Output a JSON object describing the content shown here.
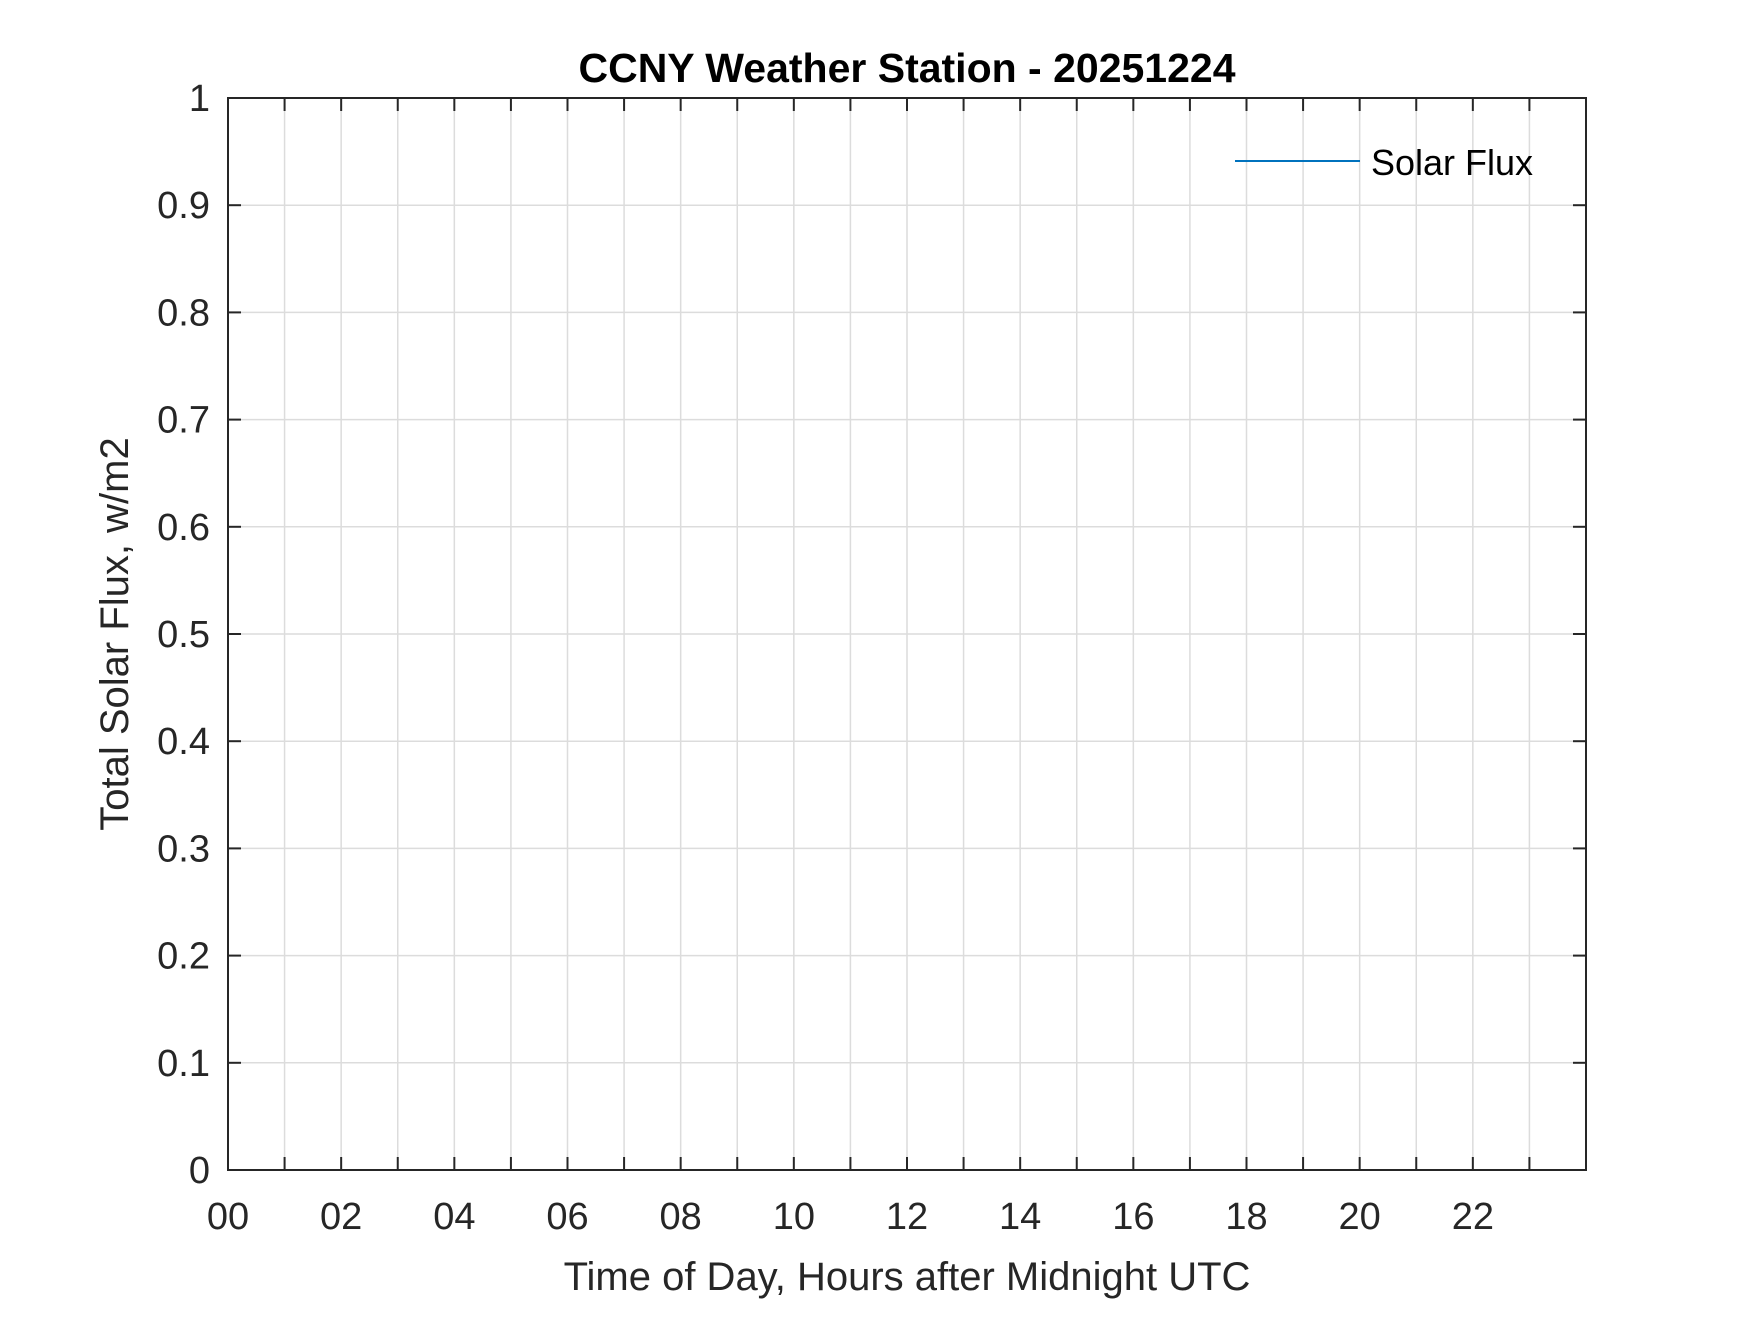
{
  "chart_data": {
    "type": "line",
    "title": "CCNY Weather Station - 20251224",
    "xlabel": "Time of Day, Hours after Midnight UTC",
    "ylabel": "Total Solar Flux, w/m2",
    "xlim": [
      0,
      24
    ],
    "ylim": [
      0,
      1
    ],
    "xticks": [
      0,
      2,
      4,
      6,
      8,
      10,
      12,
      14,
      16,
      18,
      20,
      22
    ],
    "xtick_labels": [
      "00",
      "02",
      "04",
      "06",
      "08",
      "10",
      "12",
      "14",
      "16",
      "18",
      "20",
      "22"
    ],
    "xgrid_step": 1,
    "yticks": [
      0,
      0.1,
      0.2,
      0.3,
      0.4,
      0.5,
      0.6,
      0.7,
      0.8,
      0.9,
      1
    ],
    "ytick_labels": [
      "0",
      "0.1",
      "0.2",
      "0.3",
      "0.4",
      "0.5",
      "0.6",
      "0.7",
      "0.8",
      "0.9",
      "1"
    ],
    "grid": true,
    "legend_position": "top-right",
    "series": [
      {
        "name": "Solar Flux",
        "color": "#0072BD",
        "x": [],
        "y": []
      }
    ]
  }
}
